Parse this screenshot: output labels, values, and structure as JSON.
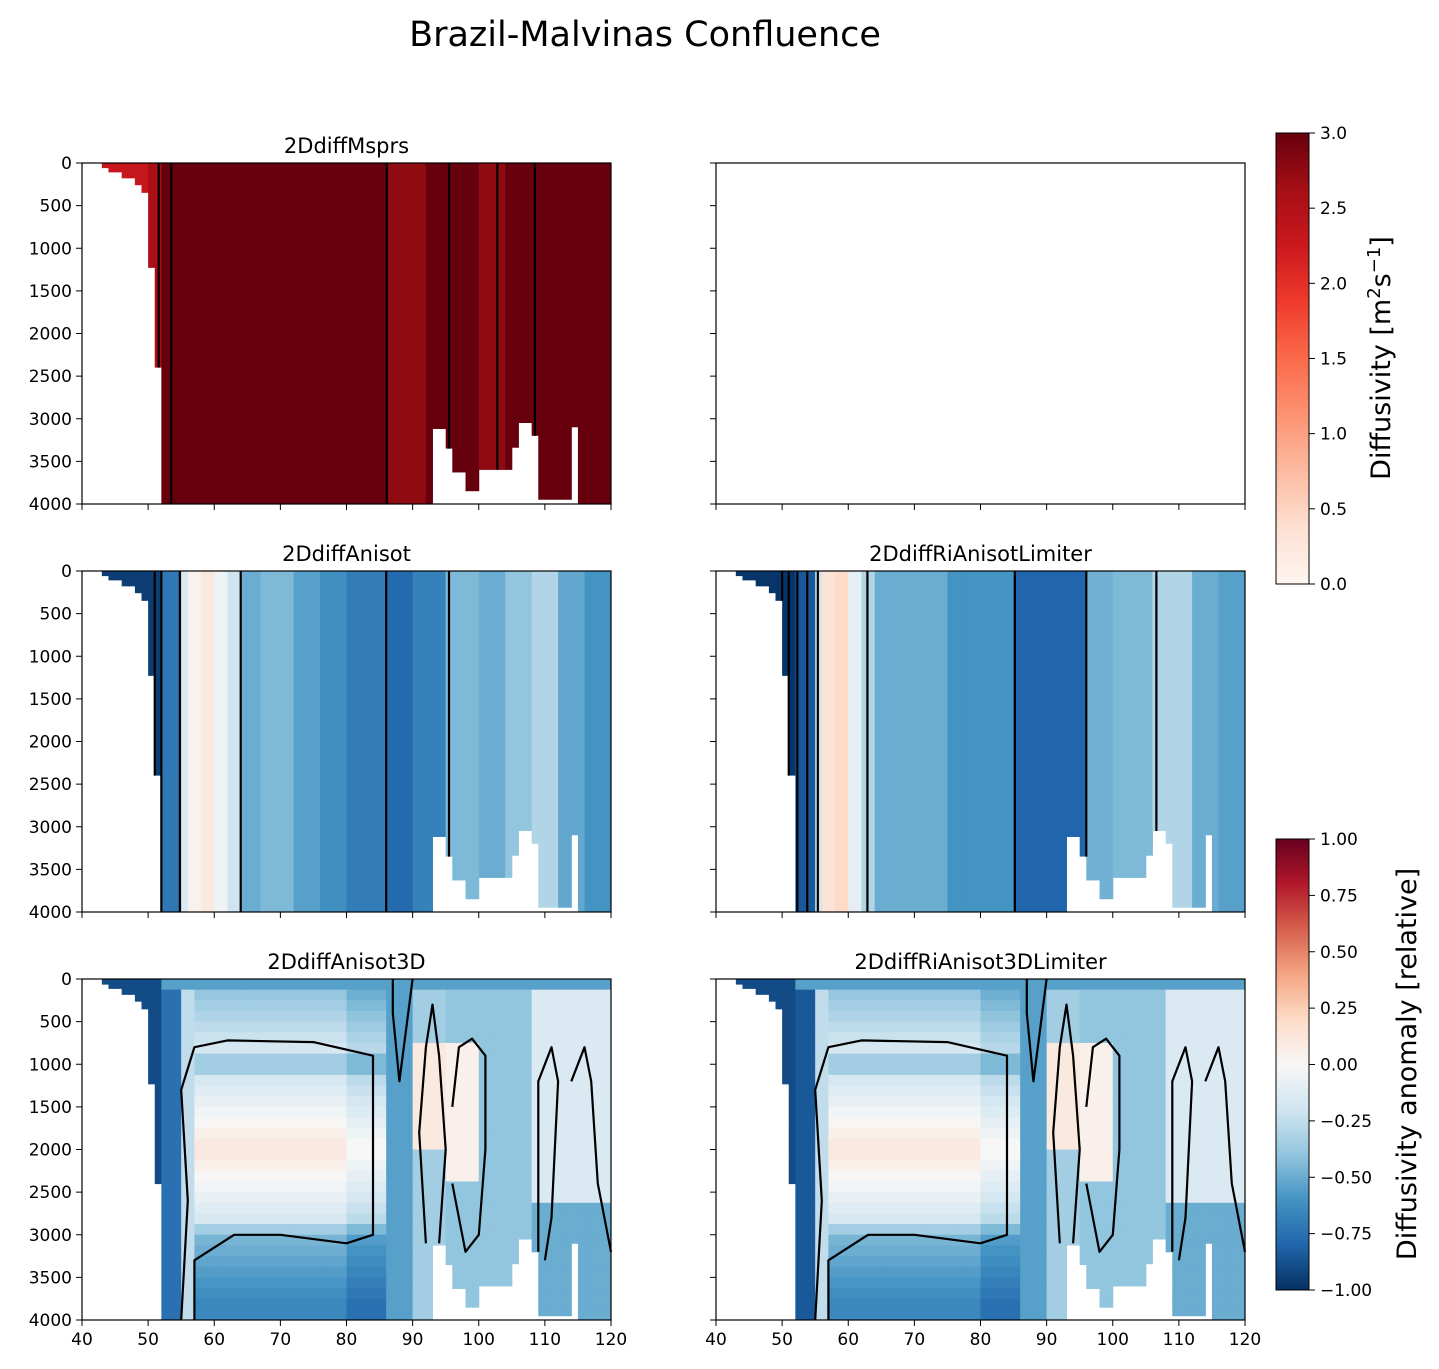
{
  "chart_data": {
    "type": "heatmap",
    "suptitle": "Brazil-Malvinas Confluence",
    "x_ticks": [
      "40",
      "50",
      "60",
      "70",
      "80",
      "90",
      "100",
      "110",
      "120"
    ],
    "y_ticks": [
      "0",
      "500",
      "1000",
      "1500",
      "2000",
      "2500",
      "3000",
      "3500",
      "4000"
    ],
    "xlim": [
      40,
      120
    ],
    "ylim": [
      4000,
      0
    ],
    "x_inverted": false,
    "y_inverted": true,
    "panels": [
      {
        "title": "2DdiffMsprs",
        "kind": "diffusivity",
        "colorbar": "diffusivity",
        "vlines": [
          51.6,
          53.5,
          86.1,
          95.5,
          102.8,
          108.5
        ]
      },
      {
        "title": "",
        "kind": "empty",
        "colorbar": "none",
        "vlines": []
      },
      {
        "title": "2DdiffAnisot",
        "kind": "anomaly_columns",
        "colorbar": "anomaly",
        "vlines": [
          51,
          52,
          54.8,
          64,
          86,
          95.5
        ]
      },
      {
        "title": "2DdiffRiAnisotLimiter",
        "kind": "anomaly_columns",
        "colorbar": "anomaly",
        "vlines": [
          50,
          51,
          52.3,
          53.8,
          55.4,
          62.9,
          85.2,
          96,
          106.6
        ]
      },
      {
        "title": "2DdiffAnisot3D",
        "kind": "anomaly_field",
        "colorbar": "anomaly",
        "vlines": []
      },
      {
        "title": "2DdiffRiAnisot3DLimiter",
        "kind": "anomaly_field",
        "colorbar": "anomaly",
        "vlines": []
      }
    ],
    "colorbars": [
      {
        "label": "Diffusivity [m²s⁻¹]",
        "label_main": "Diffusivity [m",
        "label_sup1": "2",
        "label_mid": "s",
        "label_sup2": "−1",
        "label_end": "]",
        "range": [
          0,
          3.0
        ],
        "colormap": "Reds",
        "ticks": [
          "0.0",
          "0.5",
          "1.0",
          "1.5",
          "2.0",
          "2.5",
          "3.0"
        ]
      },
      {
        "label": "Diffusivity anomaly [relative]",
        "range": [
          -1.0,
          1.0
        ],
        "colormap": "RdBu_r",
        "ticks": [
          "−1.00",
          "−0.75",
          "−0.50",
          "−0.25",
          "0.00",
          "0.25",
          "0.50",
          "0.75",
          "1.00"
        ]
      }
    ],
    "colors": {
      "contour": "#000000",
      "diverging_low": "#053061",
      "diverging_mid": "#f7f7f7",
      "diverging_high": "#67001f",
      "sequential_high": "#67000d"
    }
  }
}
